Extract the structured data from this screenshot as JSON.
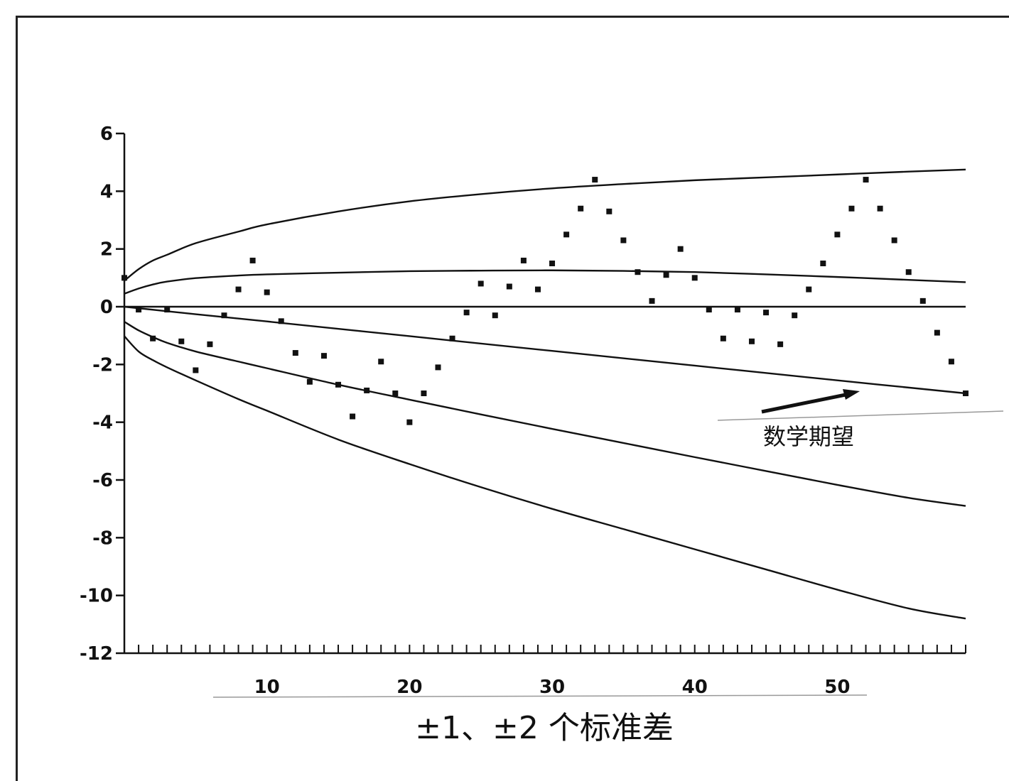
{
  "chart_data": {
    "type": "scatter",
    "title": "",
    "xlabel": "±1、±2 个标准差",
    "ylabel": "",
    "xlim": [
      0,
      59
    ],
    "ylim": [
      -12,
      6
    ],
    "x_ticks": [
      10,
      20,
      30,
      40,
      50
    ],
    "y_ticks": [
      6,
      4,
      2,
      0,
      -2,
      -4,
      -6,
      -8,
      -10,
      -12
    ],
    "grid": false,
    "annotation": "数学期望",
    "points": [
      {
        "x": 0,
        "y": 1.0
      },
      {
        "x": 1,
        "y": -0.1
      },
      {
        "x": 2,
        "y": -1.1
      },
      {
        "x": 3,
        "y": -0.1
      },
      {
        "x": 4,
        "y": -1.2
      },
      {
        "x": 5,
        "y": -2.2
      },
      {
        "x": 6,
        "y": -1.3
      },
      {
        "x": 7,
        "y": -0.3
      },
      {
        "x": 8,
        "y": 0.6
      },
      {
        "x": 9,
        "y": 1.6
      },
      {
        "x": 10,
        "y": 0.5
      },
      {
        "x": 11,
        "y": -0.5
      },
      {
        "x": 12,
        "y": -1.6
      },
      {
        "x": 13,
        "y": -2.6
      },
      {
        "x": 14,
        "y": -1.7
      },
      {
        "x": 15,
        "y": -2.7
      },
      {
        "x": 16,
        "y": -3.8
      },
      {
        "x": 17,
        "y": -2.9
      },
      {
        "x": 18,
        "y": -1.9
      },
      {
        "x": 19,
        "y": -3.0
      },
      {
        "x": 20,
        "y": -4.0
      },
      {
        "x": 21,
        "y": -3.0
      },
      {
        "x": 22,
        "y": -2.1
      },
      {
        "x": 23,
        "y": -1.1
      },
      {
        "x": 24,
        "y": -0.2
      },
      {
        "x": 25,
        "y": 0.8
      },
      {
        "x": 26,
        "y": -0.3
      },
      {
        "x": 27,
        "y": 0.7
      },
      {
        "x": 28,
        "y": 1.6
      },
      {
        "x": 29,
        "y": 0.6
      },
      {
        "x": 30,
        "y": 1.5
      },
      {
        "x": 31,
        "y": 2.5
      },
      {
        "x": 32,
        "y": 3.4
      },
      {
        "x": 33,
        "y": 4.4
      },
      {
        "x": 34,
        "y": 3.3
      },
      {
        "x": 35,
        "y": 2.3
      },
      {
        "x": 36,
        "y": 1.2
      },
      {
        "x": 37,
        "y": 0.2
      },
      {
        "x": 38,
        "y": 1.1
      },
      {
        "x": 39,
        "y": 2.0
      },
      {
        "x": 40,
        "y": 1.0
      },
      {
        "x": 41,
        "y": -0.1
      },
      {
        "x": 42,
        "y": -1.1
      },
      {
        "x": 43,
        "y": -0.1
      },
      {
        "x": 44,
        "y": -1.2
      },
      {
        "x": 45,
        "y": -0.2
      },
      {
        "x": 46,
        "y": -1.3
      },
      {
        "x": 47,
        "y": -0.3
      },
      {
        "x": 48,
        "y": 0.6
      },
      {
        "x": 49,
        "y": 1.5
      },
      {
        "x": 50,
        "y": 2.5
      },
      {
        "x": 51,
        "y": 3.4
      },
      {
        "x": 52,
        "y": 4.4
      },
      {
        "x": 53,
        "y": 3.4
      },
      {
        "x": 54,
        "y": 2.3
      },
      {
        "x": 55,
        "y": 1.2
      },
      {
        "x": 56,
        "y": 0.2
      },
      {
        "x": 57,
        "y": -0.9
      },
      {
        "x": 58,
        "y": -1.9
      },
      {
        "x": 59,
        "y": -3.0
      }
    ],
    "curves": [
      {
        "x": [
          0,
          1,
          2,
          3,
          5,
          8,
          10,
          15,
          20,
          25,
          30,
          35,
          40,
          45,
          50,
          55,
          59
        ],
        "y": [
          0.9,
          1.3,
          1.6,
          1.8,
          2.2,
          2.6,
          2.85,
          3.3,
          3.65,
          3.9,
          4.1,
          4.25,
          4.38,
          4.48,
          4.58,
          4.68,
          4.75
        ]
      },
      {
        "x": [
          0,
          1,
          2,
          3,
          5,
          8,
          10,
          15,
          20,
          25,
          30,
          35,
          40,
          45,
          50,
          55,
          59
        ],
        "y": [
          0.45,
          0.63,
          0.77,
          0.87,
          0.99,
          1.08,
          1.12,
          1.18,
          1.23,
          1.25,
          1.26,
          1.24,
          1.2,
          1.12,
          1.03,
          0.93,
          0.85
        ]
      },
      {
        "x": [
          0,
          59
        ],
        "y": [
          0,
          0
        ]
      },
      {
        "x": [
          0,
          5,
          10,
          20,
          30,
          40,
          50,
          59
        ],
        "y": [
          0,
          -0.26,
          -0.51,
          -1.02,
          -1.53,
          -2.04,
          -2.55,
          -3.0
        ]
      },
      {
        "x": [
          0,
          1,
          2,
          3,
          5,
          8,
          10,
          15,
          20,
          25,
          30,
          35,
          40,
          45,
          50,
          55,
          59
        ],
        "y": [
          -0.52,
          -0.82,
          -1.05,
          -1.25,
          -1.55,
          -1.9,
          -2.13,
          -2.7,
          -3.22,
          -3.73,
          -4.23,
          -4.72,
          -5.21,
          -5.69,
          -6.17,
          -6.62,
          -6.9
        ]
      },
      {
        "x": [
          0,
          1,
          2,
          3,
          5,
          8,
          10,
          15,
          20,
          25,
          30,
          35,
          40,
          45,
          50,
          55,
          59
        ],
        "y": [
          -1.02,
          -1.55,
          -1.85,
          -2.1,
          -2.55,
          -3.2,
          -3.6,
          -4.6,
          -5.45,
          -6.25,
          -7.0,
          -7.7,
          -8.4,
          -9.1,
          -9.8,
          -10.45,
          -10.8
        ]
      }
    ]
  }
}
